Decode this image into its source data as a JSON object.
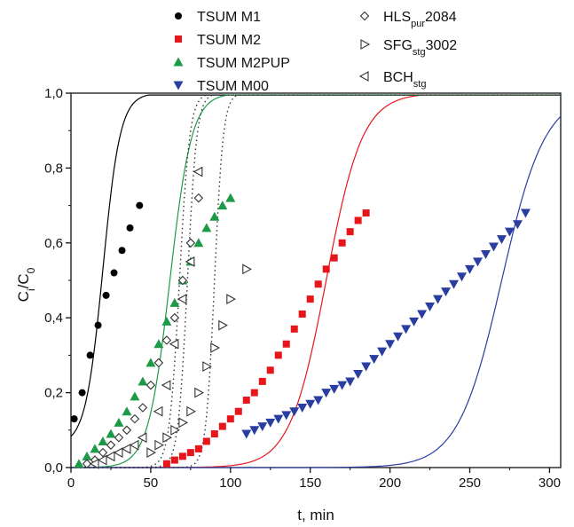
{
  "chart_data": {
    "type": "scatter",
    "xlabel": "t, min",
    "ylabel": {
      "base": "C",
      "sub1": "i",
      "mid": "/C",
      "sub2": "0"
    },
    "xlim": [
      0,
      307
    ],
    "ylim": [
      0,
      1.0
    ],
    "x_ticks": [
      0,
      50,
      100,
      150,
      200,
      250,
      300
    ],
    "x_tick_labels": [
      "0",
      "50",
      "100",
      "150",
      "200",
      "250",
      "300"
    ],
    "y_ticks": [
      0,
      0.2,
      0.4,
      0.6,
      0.8,
      1.0
    ],
    "y_tick_labels": [
      "0,0",
      "0,2",
      "0,4",
      "0,6",
      "0,8",
      "1,0"
    ],
    "grid": false,
    "legend_placement": "top",
    "series": [
      {
        "name": "TSUM M1",
        "color": "#000000",
        "marker": "circle",
        "line": "solid",
        "fit": {
          "t0": 20,
          "tau": 24,
          "c0": 0.06,
          "tmax": 307
        },
        "x": [
          2,
          7,
          12,
          17,
          22,
          27,
          32,
          37,
          43
        ],
        "y": [
          0.13,
          0.2,
          0.3,
          0.38,
          0.46,
          0.52,
          0.58,
          0.64,
          0.7
        ]
      },
      {
        "name": "TSUM M2",
        "color": "#e8161b",
        "marker": "square",
        "line": "solid",
        "fit": {
          "t0": 160,
          "tau": 50,
          "c0": 0.0,
          "tmax": 307
        },
        "x": [
          60,
          65,
          70,
          75,
          80,
          85,
          90,
          95,
          100,
          105,
          110,
          115,
          120,
          125,
          130,
          135,
          140,
          145,
          150,
          155,
          160,
          165,
          170,
          175,
          180,
          185
        ],
        "y": [
          0.01,
          0.02,
          0.03,
          0.04,
          0.05,
          0.07,
          0.09,
          0.11,
          0.13,
          0.15,
          0.18,
          0.2,
          0.23,
          0.26,
          0.3,
          0.33,
          0.37,
          0.41,
          0.45,
          0.49,
          0.53,
          0.56,
          0.6,
          0.63,
          0.66,
          0.68
        ]
      },
      {
        "name": "TSUM M2PUP",
        "color": "#1d9a47",
        "marker": "triangle-up",
        "line": "solid",
        "fit": {
          "t0": 62,
          "tau": 30,
          "c0": 0.0,
          "tmax": 307
        },
        "x": [
          5,
          10,
          15,
          20,
          25,
          30,
          35,
          40,
          45,
          50,
          55,
          60,
          65,
          70,
          75,
          80,
          85,
          90,
          95,
          100
        ],
        "y": [
          0.01,
          0.03,
          0.05,
          0.07,
          0.09,
          0.12,
          0.15,
          0.19,
          0.23,
          0.28,
          0.33,
          0.39,
          0.44,
          0.5,
          0.55,
          0.6,
          0.64,
          0.67,
          0.7,
          0.72
        ]
      },
      {
        "name": "TSUM M00",
        "color": "#2a3da0",
        "marker": "triangle-down",
        "line": "solid",
        "fit": {
          "t0": 270,
          "tau": 60,
          "c0": 0.0,
          "tmax": 307
        },
        "x": [
          110,
          115,
          120,
          125,
          130,
          135,
          140,
          145,
          150,
          155,
          160,
          165,
          170,
          175,
          180,
          185,
          190,
          195,
          200,
          205,
          210,
          215,
          220,
          225,
          230,
          235,
          240,
          245,
          250,
          255,
          260,
          265,
          270,
          275,
          280,
          285
        ],
        "y": [
          0.09,
          0.1,
          0.11,
          0.12,
          0.13,
          0.14,
          0.15,
          0.16,
          0.17,
          0.18,
          0.2,
          0.21,
          0.22,
          0.23,
          0.25,
          0.27,
          0.29,
          0.31,
          0.33,
          0.35,
          0.37,
          0.39,
          0.41,
          0.43,
          0.45,
          0.47,
          0.49,
          0.51,
          0.53,
          0.55,
          0.57,
          0.59,
          0.61,
          0.63,
          0.65,
          0.68
        ]
      },
      {
        "name_base": "HLS",
        "name_sub": "pur",
        "name_rest": "2084",
        "color": "#333333",
        "marker": "diamond-open",
        "line": "dotted",
        "fit": {
          "t0": 68,
          "tau": 14,
          "c0": 0.0,
          "tmax": 307
        },
        "x": [
          10,
          15,
          20,
          25,
          30,
          35,
          40,
          45,
          50,
          55,
          60,
          65,
          70,
          75,
          80
        ],
        "y": [
          0.01,
          0.02,
          0.04,
          0.06,
          0.08,
          0.1,
          0.13,
          0.16,
          0.22,
          0.28,
          0.34,
          0.4,
          0.5,
          0.6,
          0.72
        ]
      },
      {
        "name_base": "SFG",
        "name_sub": "stg",
        "name_rest": "3002",
        "color": "#333333",
        "marker": "triangle-right-open",
        "line": "dotted",
        "fit": {
          "t0": 90,
          "tau": 12,
          "c0": 0.0,
          "tmax": 307
        },
        "x": [
          50,
          55,
          60,
          65,
          70,
          75,
          80,
          85,
          90,
          95,
          100,
          110
        ],
        "y": [
          0.04,
          0.06,
          0.08,
          0.1,
          0.12,
          0.15,
          0.2,
          0.27,
          0.32,
          0.38,
          0.45,
          0.53
        ]
      },
      {
        "name_base": "BCH",
        "name_sub": "stg",
        "name_rest": "",
        "color": "#333333",
        "marker": "triangle-left-open",
        "line": "dotted",
        "fit": {
          "t0": 73,
          "tau": 13,
          "c0": 0.0,
          "tmax": 307
        },
        "x": [
          15,
          20,
          25,
          30,
          35,
          40,
          45,
          55,
          60,
          65,
          70,
          75,
          80
        ],
        "y": [
          0.01,
          0.02,
          0.03,
          0.04,
          0.05,
          0.06,
          0.08,
          0.15,
          0.22,
          0.33,
          0.45,
          0.55,
          0.79
        ]
      }
    ]
  }
}
